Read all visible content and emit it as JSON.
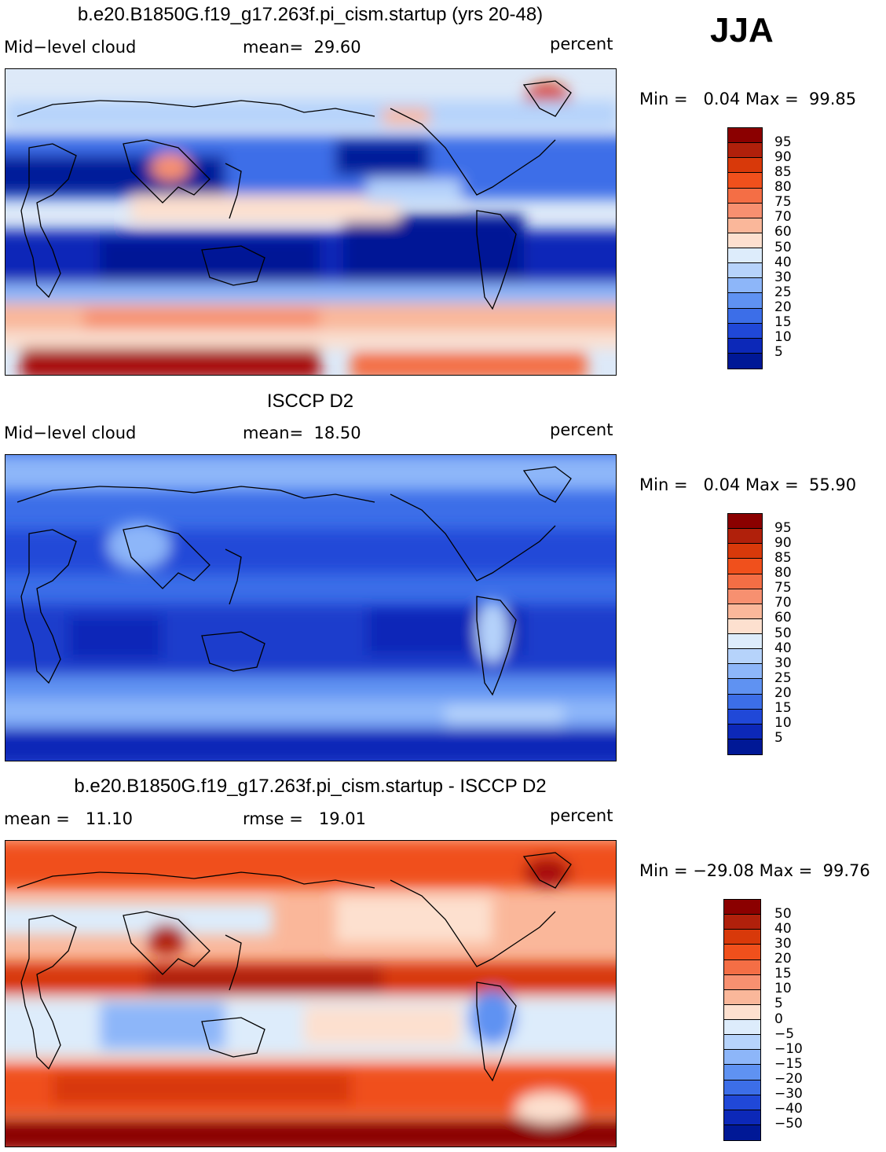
{
  "season": "JJA",
  "panels": [
    {
      "title": "b.e20.B1850G.f19_g17.263f.pi_cism.startup (yrs 20-48)",
      "left_label": "Mid−level cloud",
      "center_label": "mean=  29.60",
      "right_label": "percent",
      "minmax": "Min =   0.04 Max =  99.85",
      "colorbar": {
        "colors": [
          "#8b0000",
          "#b0200b",
          "#d8390a",
          "#f0501c",
          "#f46e45",
          "#f79070",
          "#fab79a",
          "#fde0cf",
          "#ddecfb",
          "#b6d3fb",
          "#8db6f9",
          "#5f92f2",
          "#3c6ee8",
          "#2048d8",
          "#0c28b8",
          "#001896"
        ],
        "labels": [
          "95",
          "90",
          "85",
          "80",
          "75",
          "70",
          "60",
          "50",
          "40",
          "30",
          "25",
          "20",
          "15",
          "10",
          "5"
        ]
      }
    },
    {
      "title": "ISCCP D2",
      "left_label": "Mid−level cloud",
      "center_label": "mean=  18.50",
      "right_label": "percent",
      "minmax": "Min =   0.04 Max =  55.90",
      "colorbar": {
        "colors": [
          "#8b0000",
          "#b0200b",
          "#d8390a",
          "#f0501c",
          "#f46e45",
          "#f79070",
          "#fab79a",
          "#fde0cf",
          "#ddecfb",
          "#b6d3fb",
          "#8db6f9",
          "#5f92f2",
          "#3c6ee8",
          "#2048d8",
          "#0c28b8",
          "#001896"
        ],
        "labels": [
          "95",
          "90",
          "85",
          "80",
          "75",
          "70",
          "60",
          "50",
          "40",
          "30",
          "25",
          "20",
          "15",
          "10",
          "5"
        ]
      }
    },
    {
      "title": "b.e20.B1850G.f19_g17.263f.pi_cism.startup - ISCCP D2",
      "left_label": "mean =   11.10",
      "center_label": "rmse =   19.01",
      "right_label": "percent",
      "minmax": "Min = −29.08 Max =  99.76",
      "colorbar": {
        "colors": [
          "#8b0000",
          "#b0200b",
          "#d8390a",
          "#f0501c",
          "#f46e45",
          "#f79070",
          "#fab79a",
          "#fde0cf",
          "#ddecfb",
          "#b6d3fb",
          "#8db6f9",
          "#5f92f2",
          "#3c6ee8",
          "#2048d8",
          "#0c28b8",
          "#001896"
        ],
        "labels": [
          "50",
          "40",
          "30",
          "20",
          "15",
          "10",
          "5",
          "0",
          "−5",
          "−10",
          "−15",
          "−20",
          "−30",
          "−40",
          "−50"
        ]
      }
    }
  ]
}
